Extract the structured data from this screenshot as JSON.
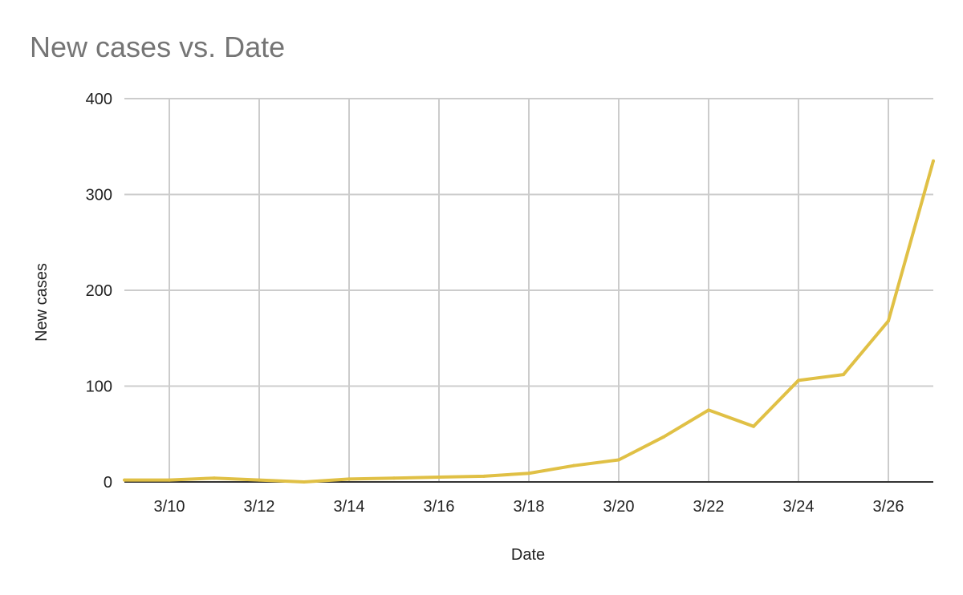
{
  "chart_data": {
    "type": "line",
    "title": "New cases vs. Date",
    "xlabel": "Date",
    "ylabel": "New cases",
    "x": [
      "3/9",
      "3/10",
      "3/11",
      "3/12",
      "3/13",
      "3/14",
      "3/15",
      "3/16",
      "3/17",
      "3/18",
      "3/19",
      "3/20",
      "3/21",
      "3/22",
      "3/23",
      "3/24",
      "3/25",
      "3/26",
      "3/27"
    ],
    "series": [
      {
        "values": [
          2,
          2,
          4,
          2,
          0,
          3,
          4,
          5,
          6,
          9,
          17,
          23,
          47,
          75,
          58,
          106,
          112,
          168,
          335
        ],
        "color": "#e0c045"
      }
    ],
    "xticks": [
      "3/10",
      "3/12",
      "3/14",
      "3/16",
      "3/18",
      "3/20",
      "3/22",
      "3/24",
      "3/26"
    ],
    "yticks": [
      "0",
      "100",
      "200",
      "300",
      "400"
    ],
    "ylim": [
      0,
      400
    ],
    "grid": true,
    "legend": "none"
  }
}
